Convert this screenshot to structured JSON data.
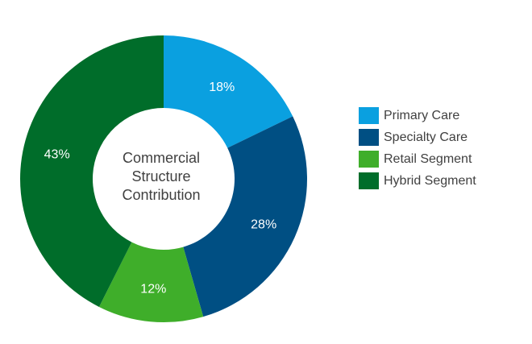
{
  "chart_data": {
    "type": "pie",
    "variant": "donut",
    "center_text": [
      "Commercial",
      "Structure",
      "Contribution"
    ],
    "categories": [
      "Primary Care",
      "Specialty Care",
      "Retail Segment",
      "Hybrid Segment"
    ],
    "values": [
      18,
      28,
      12,
      43
    ],
    "value_labels": [
      "18%",
      "28%",
      "12%",
      "43%"
    ],
    "colors": [
      "#0aa0e0",
      "#004f83",
      "#3fae2a",
      "#006d2a"
    ],
    "legend_position": "right",
    "start_angle": "top (12 o'clock), clockwise"
  }
}
